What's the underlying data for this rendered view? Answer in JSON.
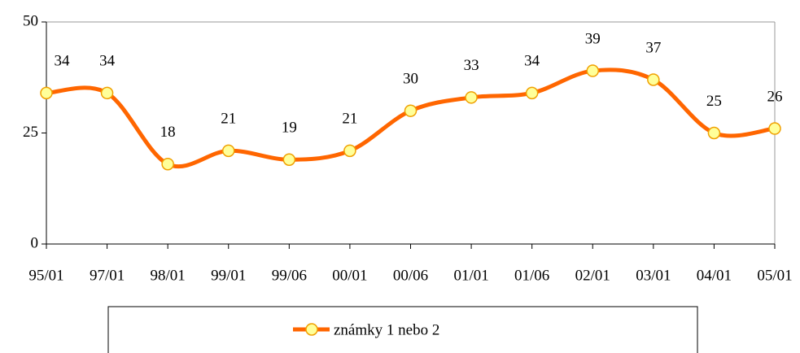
{
  "chart_data": {
    "type": "line",
    "categories": [
      "95/01",
      "97/01",
      "98/01",
      "99/01",
      "99/06",
      "00/01",
      "00/06",
      "01/01",
      "01/06",
      "02/01",
      "03/01",
      "04/01",
      "05/01"
    ],
    "series": [
      {
        "name": "známky 1 nebo 2",
        "color": "#ff6600",
        "marker_color": "#ffff99",
        "values": [
          34,
          34,
          18,
          21,
          19,
          21,
          30,
          33,
          34,
          39,
          37,
          25,
          26
        ]
      }
    ],
    "ylim": [
      0,
      50
    ],
    "yticks": [
      0,
      25,
      50
    ],
    "data_labels": true
  }
}
